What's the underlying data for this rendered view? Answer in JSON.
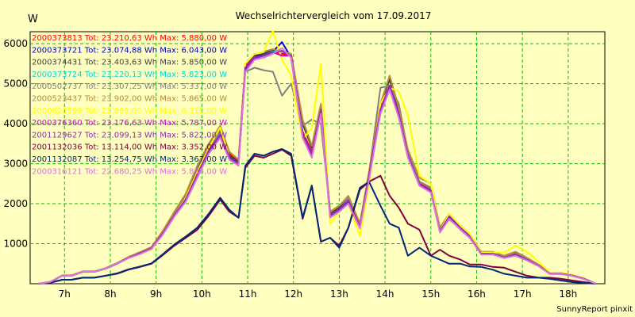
{
  "chart_data": {
    "type": "line",
    "title": "Wechselrichtervergleich vom 17.09.2017",
    "ylabel": "W",
    "xlabel": "",
    "footer": "SunnyReport pinxit",
    "xlim": [
      6.25,
      18.8
    ],
    "ylim": [
      0,
      6300
    ],
    "yticks": [
      1000,
      2000,
      3000,
      4000,
      5000,
      6000
    ],
    "xticks": [
      {
        "value": 7,
        "label": "7h"
      },
      {
        "value": 8,
        "label": "8h"
      },
      {
        "value": 9,
        "label": "9h"
      },
      {
        "value": 10,
        "label": "10h"
      },
      {
        "value": 11,
        "label": "11h"
      },
      {
        "value": 12,
        "label": "12h"
      },
      {
        "value": 13,
        "label": "13h"
      },
      {
        "value": 14,
        "label": "14h"
      },
      {
        "value": 15,
        "label": "15h"
      },
      {
        "value": 16,
        "label": "16h"
      },
      {
        "value": 17,
        "label": "17h"
      },
      {
        "value": 18,
        "label": "18h"
      }
    ],
    "grid": true,
    "legend_position": "top-left",
    "x": [
      6.45,
      6.7,
      6.95,
      7.15,
      7.4,
      7.65,
      7.9,
      8.15,
      8.4,
      8.65,
      8.9,
      9.15,
      9.4,
      9.65,
      9.9,
      10.15,
      10.4,
      10.6,
      10.8,
      10.95,
      11.15,
      11.35,
      11.55,
      11.75,
      11.95,
      12.2,
      12.4,
      12.6,
      12.8,
      13.0,
      13.2,
      13.45,
      13.65,
      13.9,
      14.1,
      14.3,
      14.5,
      14.75,
      15.0,
      15.2,
      15.4,
      15.65,
      15.85,
      16.1,
      16.35,
      16.6,
      16.85,
      17.1,
      17.35,
      17.6,
      17.85,
      18.1,
      18.35,
      18.6
    ],
    "series": [
      {
        "name": "2000373813 Tot: 23.210,63 Wh Max: 5.880,00 W",
        "color": "#ff0000",
        "values": [
          0,
          50,
          200,
          200,
          300,
          300,
          380,
          500,
          650,
          760,
          890,
          1280,
          1750,
          2150,
          2800,
          3400,
          3850,
          3250,
          3050,
          5450,
          5650,
          5700,
          5800,
          5750,
          5700,
          3800,
          3300,
          4400,
          1700,
          1850,
          2100,
          1450,
          2700,
          4400,
          5150,
          4300,
          3200,
          2500,
          2350,
          1300,
          1700,
          1400,
          1200,
          750,
          750,
          650,
          750,
          600,
          450,
          250,
          250,
          200,
          120,
          0
        ]
      },
      {
        "name": "2000373721 Tot: 23.074,88 Wh Max: 6.043,00 W",
        "color": "#0000c8",
        "values": [
          0,
          50,
          200,
          200,
          300,
          300,
          380,
          500,
          650,
          760,
          890,
          1250,
          1700,
          2100,
          2700,
          3300,
          3700,
          3150,
          3000,
          5350,
          5650,
          5750,
          5800,
          6040,
          5650,
          3700,
          3200,
          4300,
          1700,
          1850,
          2050,
          1400,
          2650,
          4300,
          4900,
          4200,
          3200,
          2450,
          2300,
          1300,
          1650,
          1350,
          1150,
          750,
          750,
          650,
          700,
          600,
          450,
          250,
          250,
          200,
          120,
          0
        ]
      },
      {
        "name": "2000374431 Tot: 23.403,63 Wh Max: 5.850,00 W",
        "color": "#404040",
        "values": [
          0,
          50,
          200,
          200,
          300,
          300,
          380,
          500,
          650,
          760,
          890,
          1300,
          1750,
          2200,
          2850,
          3450,
          3900,
          3200,
          3050,
          5500,
          5700,
          5750,
          5850,
          5800,
          5700,
          4000,
          3400,
          4450,
          1750,
          1900,
          2150,
          1500,
          2750,
          4450,
          5100,
          4350,
          3300,
          2550,
          2400,
          1350,
          1700,
          1400,
          1200,
          780,
          780,
          680,
          780,
          620,
          460,
          260,
          260,
          210,
          130,
          0
        ]
      },
      {
        "name": "2000373724 Tot: 23.220,13 Wh Max: 5.823,00 W",
        "color": "#00d8d8",
        "values": [
          0,
          50,
          200,
          200,
          300,
          300,
          380,
          500,
          650,
          760,
          890,
          1270,
          1720,
          2120,
          2750,
          3350,
          3750,
          3150,
          3000,
          5400,
          5650,
          5700,
          5800,
          5820,
          5700,
          3750,
          3250,
          4350,
          1700,
          1850,
          2100,
          1420,
          2700,
          4350,
          4950,
          4250,
          3200,
          2480,
          2330,
          1300,
          1680,
          1380,
          1180,
          750,
          750,
          650,
          730,
          600,
          450,
          250,
          250,
          200,
          120,
          0
        ]
      },
      {
        "name": "2000502737 Tot: 23.307,25 Wh Max: 5.337,00 W",
        "color": "#808080",
        "values": [
          0,
          50,
          200,
          200,
          300,
          300,
          380,
          500,
          650,
          760,
          890,
          1290,
          1740,
          2170,
          2800,
          3400,
          3800,
          3150,
          3000,
          5300,
          5400,
          5337,
          5300,
          4700,
          5000,
          3950,
          4100,
          4000,
          1800,
          1950,
          2150,
          1500,
          2750,
          4900,
          4950,
          4500,
          3300,
          2550,
          2400,
          1350,
          1600,
          1400,
          1200,
          780,
          780,
          680,
          780,
          620,
          460,
          260,
          260,
          210,
          130,
          0
        ]
      },
      {
        "name": "2000523437 Tot: 23.902,00 Wh Max: 5.865,00 W",
        "color": "#b48c3c",
        "values": [
          0,
          50,
          210,
          210,
          310,
          310,
          390,
          520,
          670,
          790,
          920,
          1330,
          1800,
          2250,
          2950,
          3500,
          3950,
          3300,
          3100,
          5500,
          5750,
          5800,
          5865,
          5800,
          5750,
          4100,
          3450,
          4500,
          1800,
          1950,
          2200,
          1500,
          2800,
          4500,
          5200,
          4400,
          3350,
          2650,
          2500,
          1400,
          1750,
          1450,
          1250,
          800,
          800,
          700,
          800,
          650,
          480,
          270,
          270,
          220,
          130,
          0
        ]
      },
      {
        "name": "2000623599 Tot: 23.899,00 Wh Max: 6.319,00 W",
        "color": "#ffff00",
        "values": [
          0,
          50,
          200,
          200,
          300,
          300,
          380,
          500,
          650,
          760,
          850,
          1250,
          1700,
          2150,
          2800,
          3400,
          3900,
          3150,
          2950,
          5500,
          5750,
          5800,
          6319,
          5600,
          5200,
          3600,
          3900,
          5500,
          1500,
          1800,
          2000,
          1200,
          2500,
          4500,
          4900,
          4800,
          4200,
          2700,
          2500,
          1300,
          1750,
          1450,
          1250,
          780,
          780,
          780,
          950,
          800,
          550,
          280,
          280,
          220,
          130,
          0
        ]
      },
      {
        "name": "2000376360 Tot: 23.176,63 Wh Max: 5.787,00 W",
        "color": "#d000d0",
        "values": [
          0,
          50,
          200,
          200,
          300,
          300,
          380,
          500,
          650,
          760,
          890,
          1260,
          1710,
          2110,
          2730,
          3330,
          3720,
          3150,
          3000,
          5400,
          5650,
          5700,
          5787,
          5700,
          5700,
          3750,
          3250,
          4350,
          1700,
          1850,
          2080,
          1420,
          2700,
          4350,
          4950,
          4250,
          3200,
          2480,
          2330,
          1300,
          1680,
          1380,
          1180,
          750,
          750,
          650,
          730,
          600,
          450,
          250,
          250,
          200,
          120,
          0
        ]
      },
      {
        "name": "2001129627 Tot: 23.099,13 Wh Max: 5.822,00 W",
        "color": "#8c2cb4",
        "values": [
          0,
          50,
          200,
          200,
          300,
          300,
          380,
          500,
          650,
          760,
          890,
          1250,
          1700,
          2100,
          2720,
          3320,
          3700,
          3150,
          3000,
          5380,
          5630,
          5700,
          5780,
          5822,
          5690,
          3730,
          3230,
          4320,
          1700,
          1850,
          2070,
          1410,
          2680,
          4320,
          4920,
          4230,
          3200,
          2470,
          2320,
          1300,
          1670,
          1370,
          1170,
          750,
          750,
          650,
          720,
          600,
          450,
          250,
          250,
          200,
          120,
          0
        ]
      },
      {
        "name": "2001132036 Tot: 13.114,00 Wh Max: 3.352,00 W",
        "color": "#800040",
        "values": [
          0,
          30,
          100,
          100,
          150,
          150,
          200,
          250,
          350,
          420,
          500,
          720,
          950,
          1150,
          1350,
          1700,
          2100,
          1800,
          1650,
          2900,
          3200,
          3150,
          3250,
          3352,
          3200,
          1620,
          2450,
          1050,
          1150,
          950,
          1400,
          2350,
          2550,
          2700,
          2200,
          1900,
          1500,
          1350,
          700,
          850,
          700,
          600,
          480,
          480,
          420,
          400,
          300,
          200,
          150,
          150,
          120,
          80,
          40,
          0
        ]
      },
      {
        "name": "2001132087 Tot: 13.254,75 Wh Max: 3.367,00 W",
        "color": "#002878",
        "values": [
          0,
          30,
          100,
          100,
          150,
          150,
          200,
          260,
          360,
          430,
          510,
          740,
          980,
          1180,
          1400,
          1750,
          2150,
          1850,
          1650,
          2950,
          3250,
          3200,
          3300,
          3367,
          3250,
          1650,
          2450,
          1050,
          1150,
          900,
          1400,
          2400,
          2550,
          1950,
          1500,
          1400,
          700,
          900,
          700,
          600,
          500,
          500,
          430,
          420,
          350,
          250,
          200,
          150,
          150,
          120,
          80,
          40,
          20,
          0
        ]
      },
      {
        "name": "2000316121 Tot: 22.680,25 Wh Max: 5.888,00 W",
        "color": "#e070e0",
        "values": [
          0,
          50,
          200,
          200,
          300,
          300,
          380,
          500,
          640,
          740,
          870,
          1230,
          1680,
          2050,
          2650,
          3250,
          3650,
          3100,
          2950,
          5300,
          5600,
          5650,
          5750,
          5888,
          5650,
          3650,
          3150,
          4250,
          1650,
          1800,
          2000,
          1380,
          2600,
          4250,
          4850,
          4150,
          3150,
          2450,
          2280,
          1280,
          1620,
          1350,
          1150,
          730,
          730,
          640,
          700,
          580,
          440,
          240,
          240,
          190,
          110,
          0
        ]
      }
    ]
  }
}
